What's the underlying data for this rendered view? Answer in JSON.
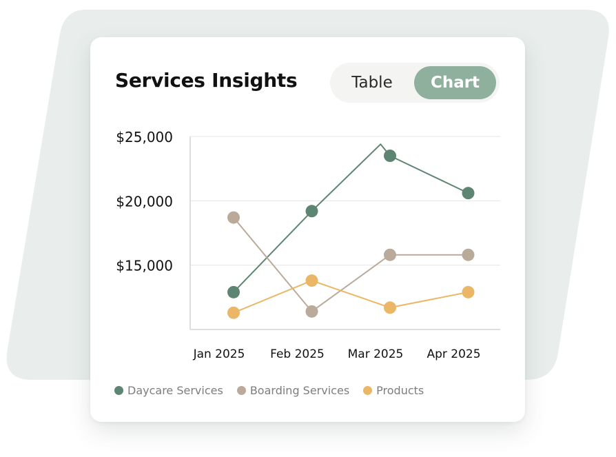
{
  "card": {
    "title": "Services Insights",
    "toggle": {
      "table_label": "Table",
      "chart_label": "Chart",
      "active": "Chart"
    }
  },
  "colors": {
    "backdrop": "#e9eeec",
    "toggle_active": "#8fb09c",
    "grid": "#e6e6e6",
    "axis": "#d4d4d4"
  },
  "chart_data": {
    "type": "line",
    "categories": [
      "Jan 2025",
      "Feb 2025",
      "Mar 2025",
      "Apr 2025"
    ],
    "ylim": [
      10000,
      25000
    ],
    "yticks": [
      15000,
      20000,
      25000
    ],
    "ytick_labels": [
      "$15,000",
      "$20,000",
      "$25,000"
    ],
    "grid": true,
    "legend_position": "bottom-left",
    "series": [
      {
        "name": "Daycare Services",
        "color": "#5e8571",
        "points": [
          {
            "x": 0,
            "y": 12900
          },
          {
            "x": 1,
            "y": 19200
          },
          {
            "x": 1.88,
            "y": 24400,
            "marker": false
          },
          {
            "x": 2,
            "y": 23500
          },
          {
            "x": 3,
            "y": 20600
          }
        ]
      },
      {
        "name": "Boarding Services",
        "color": "#baaa99",
        "points": [
          {
            "x": 0,
            "y": 18700
          },
          {
            "x": 1,
            "y": 11400
          },
          {
            "x": 2,
            "y": 15800
          },
          {
            "x": 3,
            "y": 15800
          }
        ]
      },
      {
        "name": "Products",
        "color": "#ebb666",
        "points": [
          {
            "x": 0,
            "y": 11300
          },
          {
            "x": 1,
            "y": 13800
          },
          {
            "x": 2,
            "y": 11700
          },
          {
            "x": 3,
            "y": 12900
          }
        ]
      }
    ]
  }
}
